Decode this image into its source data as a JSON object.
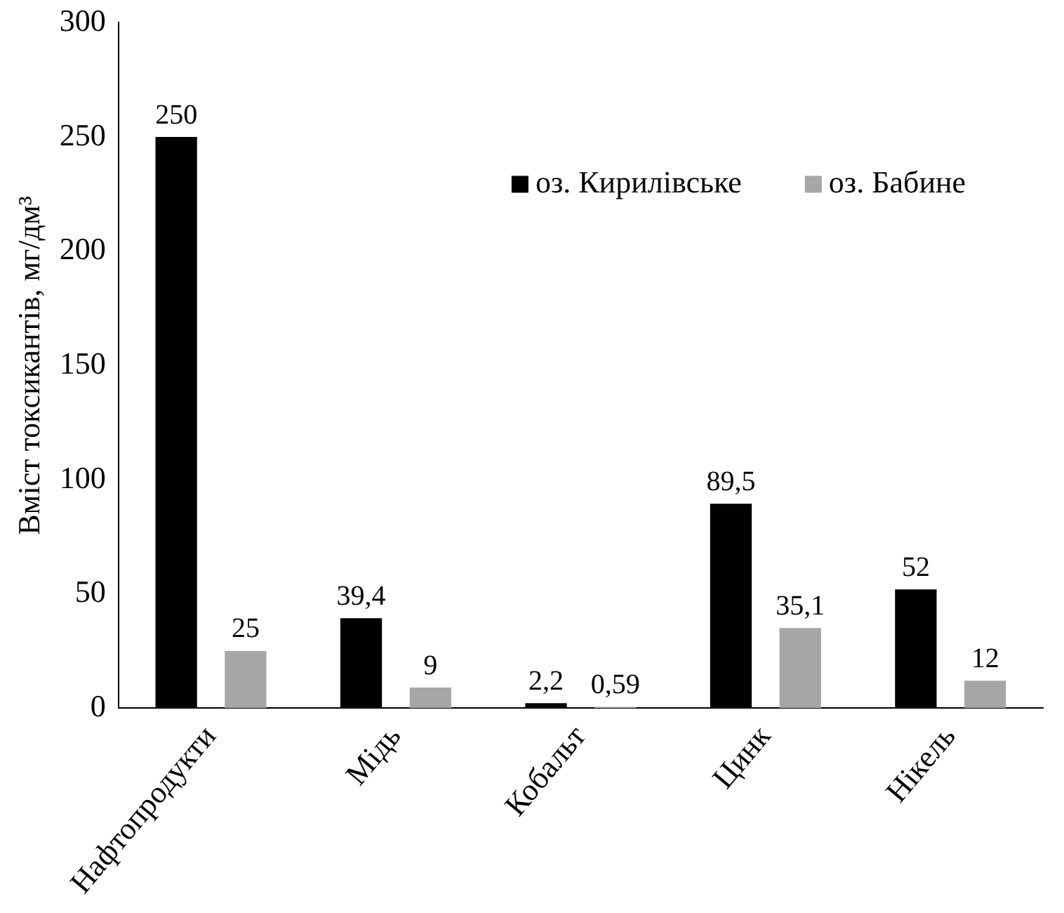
{
  "chart_data": {
    "type": "bar",
    "ylabel": "Вміст токсикантів, мг/дм³",
    "categories": [
      "Нафтопродукти",
      "Мідь",
      "Кобальт",
      "Цинк",
      "Нікель"
    ],
    "series": [
      {
        "name": "оз. Кирилівське",
        "color": "#000000",
        "values": [
          250,
          39.4,
          2.2,
          89.5,
          52
        ],
        "value_labels": [
          "250",
          "39,4",
          "2,2",
          "89,5",
          "52"
        ]
      },
      {
        "name": "оз. Бабине",
        "color": "#a6a6a6",
        "values": [
          25,
          9,
          0.59,
          35.1,
          12
        ],
        "value_labels": [
          "25",
          "9",
          "0,59",
          "35,1",
          "12"
        ]
      }
    ],
    "ylim": [
      0,
      300
    ],
    "yticks": [
      0,
      50,
      100,
      150,
      200,
      250,
      300
    ],
    "grid": false,
    "legend": "top right"
  }
}
